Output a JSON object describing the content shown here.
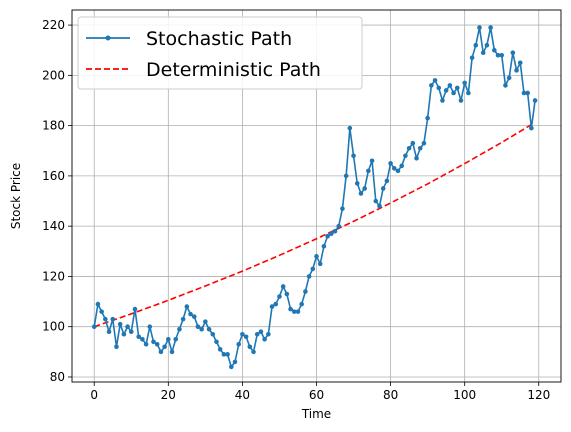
{
  "chart_data": {
    "type": "line",
    "title": "",
    "xlabel": "Time",
    "ylabel": "Stock Price",
    "xlim": [
      -6,
      126
    ],
    "ylim": [
      78,
      226
    ],
    "xticks": [
      0,
      20,
      40,
      60,
      80,
      100,
      120
    ],
    "yticks": [
      80,
      100,
      120,
      140,
      160,
      180,
      200,
      220
    ],
    "grid": true,
    "legend": {
      "placement": "top-left"
    },
    "series": [
      {
        "name": "Stochastic Path",
        "style": "solid-with-markers",
        "color": "#1f77b4",
        "x": [
          0,
          1,
          2,
          3,
          4,
          5,
          6,
          7,
          8,
          9,
          10,
          11,
          12,
          13,
          14,
          15,
          16,
          17,
          18,
          19,
          20,
          21,
          22,
          23,
          24,
          25,
          26,
          27,
          28,
          29,
          30,
          31,
          32,
          33,
          34,
          35,
          36,
          37,
          38,
          39,
          40,
          41,
          42,
          43,
          44,
          45,
          46,
          47,
          48,
          49,
          50,
          51,
          52,
          53,
          54,
          55,
          56,
          57,
          58,
          59,
          60,
          61,
          62,
          63,
          64,
          65,
          66,
          67,
          68,
          69,
          70,
          71,
          72,
          73,
          74,
          75,
          76,
          77,
          78,
          79,
          80,
          81,
          82,
          83,
          84,
          85,
          86,
          87,
          88,
          89,
          90,
          91,
          92,
          93,
          94,
          95,
          96,
          97,
          98,
          99,
          100,
          101,
          102,
          103,
          104,
          105,
          106,
          107,
          108,
          109,
          110,
          111,
          112,
          113,
          114,
          115,
          116,
          117,
          118,
          119
        ],
        "y": [
          100,
          109,
          106,
          103,
          98,
          103,
          92,
          101,
          97,
          100,
          98,
          107,
          96,
          95,
          93,
          100,
          94,
          93,
          90,
          92,
          95,
          90,
          95,
          99,
          103,
          108,
          105,
          104,
          100,
          99,
          102,
          99,
          97,
          94,
          91,
          89,
          89,
          84,
          86,
          93,
          97,
          96,
          92,
          90,
          97,
          98,
          95,
          97,
          108,
          109,
          112,
          116,
          113,
          107,
          106,
          106,
          109,
          114,
          120,
          123,
          128,
          125,
          132,
          136,
          137,
          138,
          140,
          147,
          160,
          179,
          168,
          157,
          153,
          155,
          162,
          166,
          150,
          148,
          155,
          158,
          165,
          163,
          162,
          164,
          168,
          171,
          173,
          167,
          171,
          173,
          183,
          196,
          198,
          195,
          190,
          194,
          196,
          193,
          195,
          190,
          197,
          193,
          207,
          212,
          219,
          209,
          212,
          219,
          210,
          208,
          208,
          196,
          199,
          209,
          202,
          205,
          193,
          193,
          179,
          190
        ]
      },
      {
        "name": "Deterministic Path",
        "style": "dashed",
        "color": "#ff0000",
        "x": [
          0,
          10,
          20,
          30,
          40,
          50,
          60,
          70,
          80,
          90,
          100,
          110,
          118
        ],
        "y": [
          100,
          105.1,
          110.5,
          116.2,
          122.1,
          128.4,
          135.0,
          141.9,
          149.2,
          156.8,
          164.9,
          173.3,
          180.4
        ]
      }
    ]
  }
}
